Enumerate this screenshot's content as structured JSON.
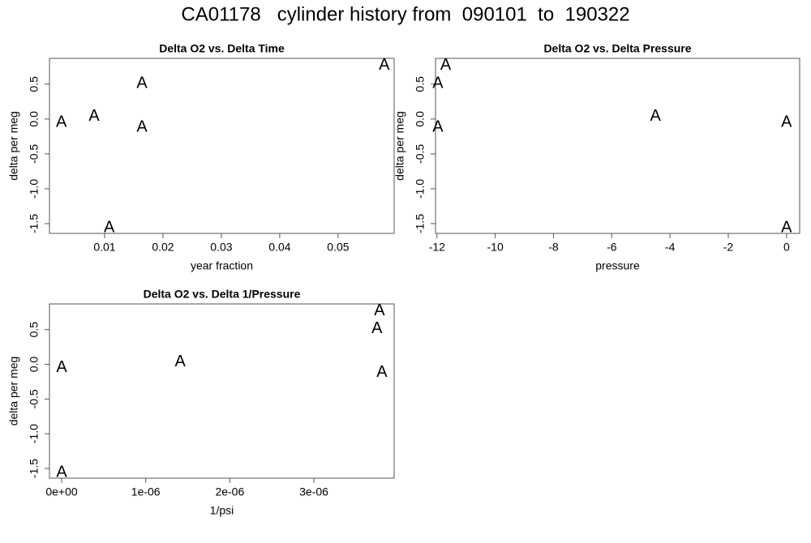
{
  "title": "CA01178   cylinder history from  090101  to  190322",
  "chart_data": [
    {
      "type": "scatter",
      "title": "Delta O2 vs. Delta Time",
      "xlabel": "year fraction",
      "ylabel": "delta per meg",
      "marker": "A",
      "color": "#006400",
      "x": [
        0.0026,
        0.0082,
        0.0164,
        0.0164,
        0.0108,
        0.0579
      ],
      "values": [
        -0.05,
        0.035,
        0.51,
        -0.12,
        -1.56,
        0.77
      ],
      "xlim": [
        0.00056,
        0.0596
      ],
      "ylim": [
        -1.64,
        0.87
      ],
      "xticks": [
        0.01,
        0.02,
        0.03,
        0.04,
        0.05
      ],
      "yticks": [
        {
          "value": -1.5,
          "label": "-1.5"
        },
        {
          "value": -1,
          "label": "-1.0"
        },
        -0.5,
        {
          "value": 0,
          "label": "0.0"
        },
        0.5
      ]
    },
    {
      "type": "scatter",
      "title": "Delta O2 vs. Delta Pressure",
      "xlabel": "pressure",
      "ylabel": "delta per meg",
      "marker": "A",
      "color": "#006400",
      "x": [
        -11.97,
        -11.7,
        -11.97,
        -4.5,
        0,
        0
      ],
      "values": [
        0.51,
        0.77,
        -0.12,
        0.035,
        -0.05,
        -1.56
      ],
      "xlim": [
        -12.05,
        0.45
      ],
      "ylim": [
        -1.64,
        0.87
      ],
      "xticks": [
        -12,
        -10,
        -8,
        -6,
        -4,
        -2,
        0
      ],
      "yticks": [
        {
          "value": -1.5,
          "label": "-1.5"
        },
        {
          "value": -1,
          "label": "-1.0"
        },
        -0.5,
        {
          "value": 0,
          "label": "0.0"
        },
        0.5
      ]
    },
    {
      "type": "scatter",
      "title": "Delta O2 vs. Delta 1/Pressure",
      "xlabel": "1/psi",
      "ylabel": "delta per meg",
      "marker": "A",
      "color": "#006400",
      "x": [
        0,
        0,
        1.41e-06,
        3.75e-06,
        3.78e-06,
        3.81e-06
      ],
      "values": [
        -0.05,
        -1.56,
        0.035,
        0.51,
        0.77,
        -0.12
      ],
      "xlim": [
        -1.45e-07,
        3.955e-06
      ],
      "ylim": [
        -1.64,
        0.87
      ],
      "xticks": [
        {
          "value": 0,
          "label": "0e+00"
        },
        {
          "value": 1e-06,
          "label": "1e-06"
        },
        {
          "value": 2e-06,
          "label": "2e-06"
        },
        {
          "value": 3e-06,
          "label": "3e-06"
        }
      ],
      "yticks": [
        {
          "value": -1.5,
          "label": "-1.5"
        },
        {
          "value": -1,
          "label": "-1.0"
        },
        -0.5,
        {
          "value": 0,
          "label": "0.0"
        },
        0.5
      ]
    }
  ]
}
